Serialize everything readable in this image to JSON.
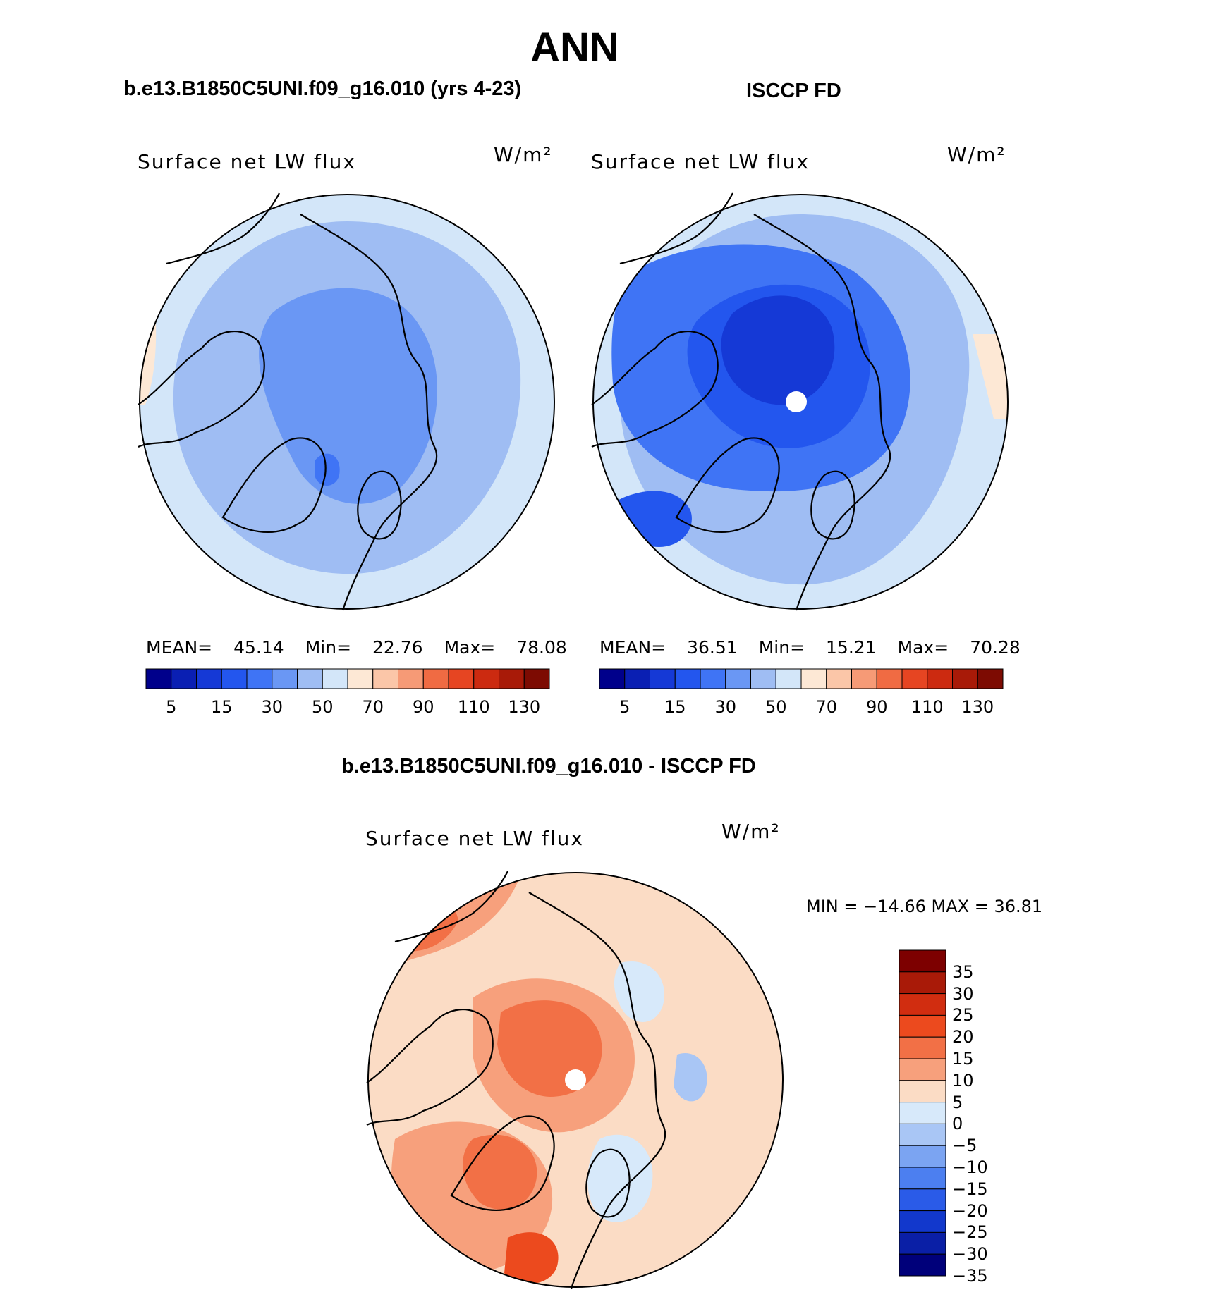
{
  "figure": {
    "title": "ANN"
  },
  "panels": [
    {
      "heading": "b.e13.B1850C5UNI.f09_g16.010 (yrs 4-23)",
      "label": "Surface net LW flux",
      "units": "W/m²",
      "stats": {
        "mean_label": "MEAN=",
        "mean": "45.14",
        "min_label": "Min=",
        "min": "22.76",
        "max_label": "Max=",
        "max": "78.08"
      }
    },
    {
      "heading": "ISCCP FD",
      "label": "Surface net LW flux",
      "units": "W/m²",
      "stats": {
        "mean_label": "MEAN=",
        "mean": "36.51",
        "min_label": "Min=",
        "min": "15.21",
        "max_label": "Max=",
        "max": "70.28"
      }
    }
  ],
  "colorbar_abs": {
    "colors": [
      "#00008b",
      "#0a1fb3",
      "#1539d6",
      "#2356ee",
      "#3f74f5",
      "#6a97f4",
      "#9fbdf3",
      "#d3e6f9",
      "#fde8d5",
      "#fbc6a8",
      "#f69a76",
      "#f06b43",
      "#e64522",
      "#cc2a10",
      "#a81a08",
      "#7d0b02"
    ],
    "labels": [
      "5",
      "15",
      "30",
      "50",
      "70",
      "90",
      "110",
      "130"
    ]
  },
  "difference": {
    "heading": "b.e13.B1850C5UNI.f09_g16.010 - ISCCP FD",
    "label": "Surface net LW flux",
    "units": "W/m²",
    "min_max": "MIN = −14.66 MAX =   36.81",
    "colorbar": {
      "colors": [
        "#7d0000",
        "#a91a08",
        "#d12d10",
        "#ec4a1e",
        "#f27046",
        "#f7a07c",
        "#fbdcc5",
        "#d7e9fa",
        "#a9c6f5",
        "#7ba4f2",
        "#4c7ff0",
        "#2a5be8",
        "#1238cc",
        "#0a1fa6",
        "#00007a"
      ],
      "labels": [
        "35",
        "30",
        "25",
        "20",
        "15",
        "10",
        "5",
        "0",
        "−5",
        "−10",
        "−15",
        "−20",
        "−25",
        "−30",
        "−35"
      ]
    }
  },
  "map_colors": {
    "model": {
      "base": "#9fbdf3",
      "outer": "#d3e6f9",
      "inner": "#6a97f4",
      "deep": "#3f74f5",
      "warm": "#fde8d5"
    },
    "obs": {
      "base": "#9fbdf3",
      "outer": "#d3e6f9",
      "inner": "#3f74f5",
      "deep": "#2356ee",
      "core": "#1539d6",
      "warm": "#fde8d5"
    },
    "diff": {
      "base": "#fbdcc5",
      "mid": "#f7a07c",
      "strong": "#f27046",
      "hot": "#ec4a1e",
      "cool": "#d7e9fa",
      "cooler": "#a9c6f5"
    }
  }
}
